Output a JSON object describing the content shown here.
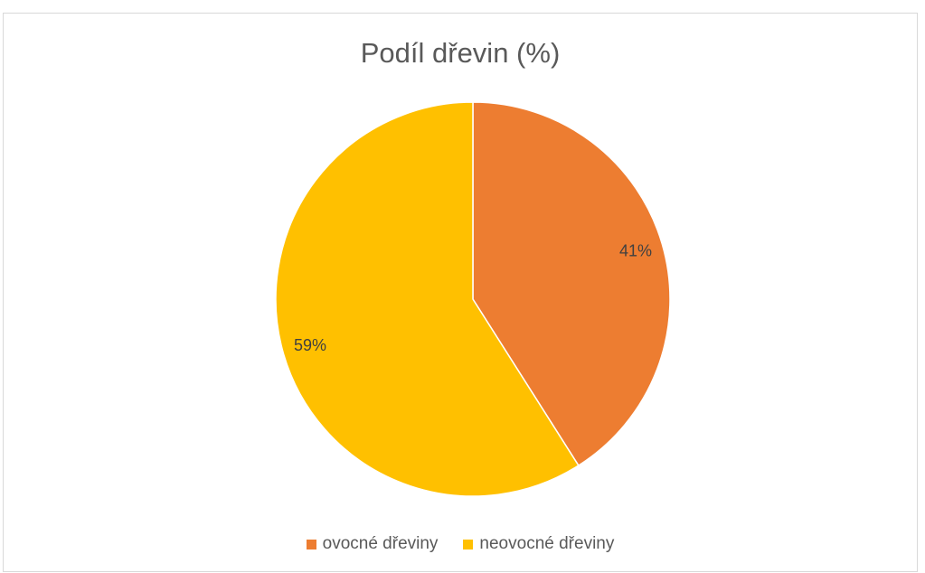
{
  "chart_data": {
    "type": "pie",
    "title": "Podíl dřevin (%)",
    "categories": [
      "ovocné dřeviny",
      "neovocné dřeviny"
    ],
    "values": [
      41,
      59
    ],
    "labels": [
      "41%",
      "59%"
    ],
    "colors": [
      "#ED7D31",
      "#FFC000"
    ],
    "legend_position": "bottom"
  }
}
